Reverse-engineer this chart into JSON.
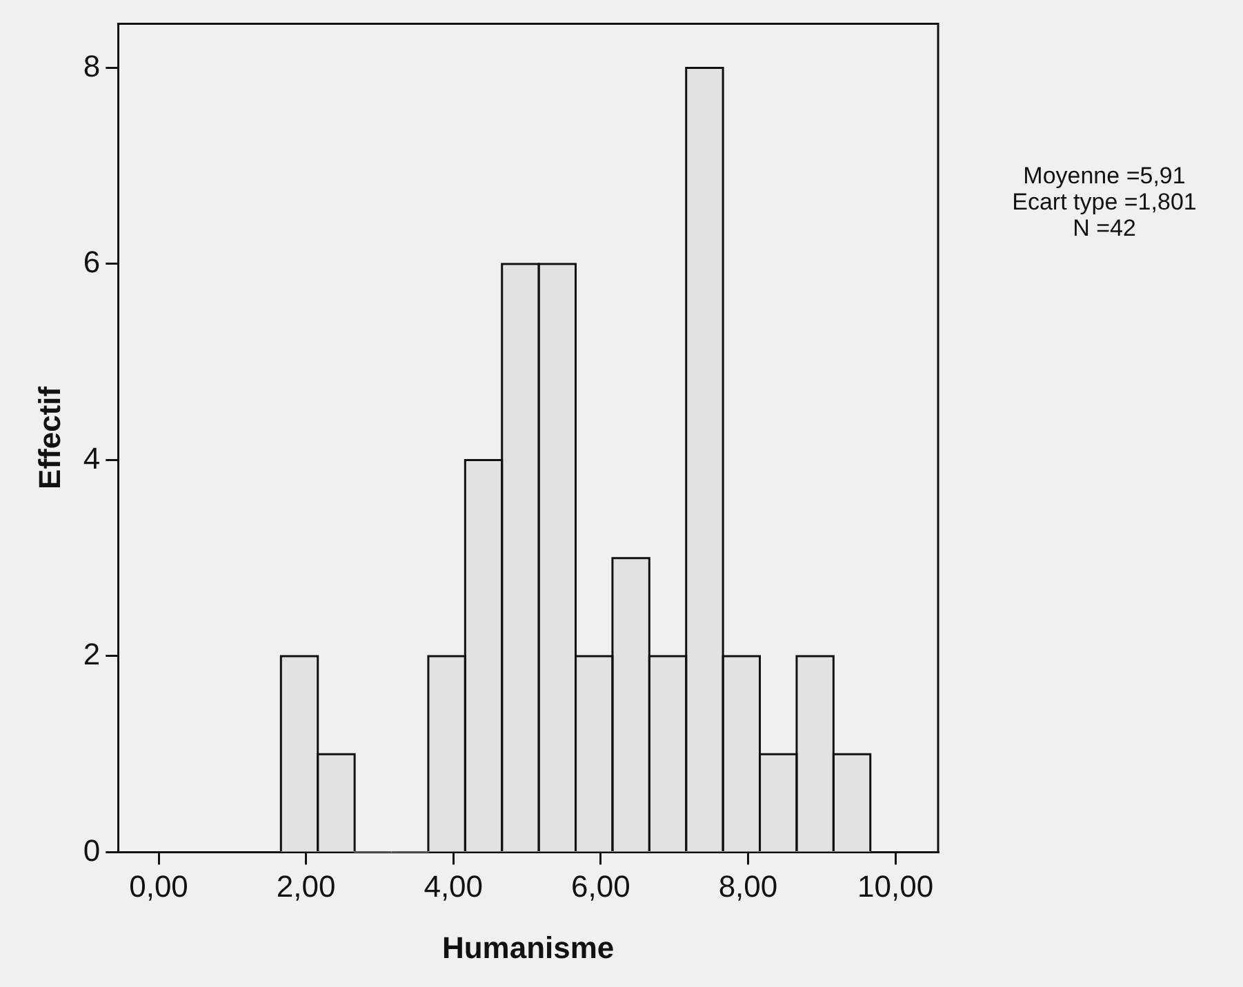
{
  "chart_data": {
    "type": "histogram",
    "xlabel": "Humanisme",
    "ylabel": "Effectif",
    "bins": [
      1.66,
      2.16,
      2.66,
      3.16,
      3.66,
      4.16,
      4.66,
      5.16,
      5.66,
      6.16,
      6.66,
      7.16,
      7.66,
      8.16,
      8.66,
      9.16,
      9.66
    ],
    "values": [
      2,
      1,
      0,
      0,
      2,
      4,
      6,
      6,
      2,
      3,
      2,
      8,
      2,
      1,
      2,
      1
    ],
    "color": "#e2e2e2",
    "xlim": [
      -0.55,
      10.58
    ],
    "xticks": [
      {
        "value": 0,
        "label": "0,00"
      },
      {
        "value": 2,
        "label": "2,00"
      },
      {
        "value": 4,
        "label": "4,00"
      },
      {
        "value": 6,
        "label": "6,00"
      },
      {
        "value": 8,
        "label": "8,00"
      },
      {
        "value": 10,
        "label": "10,00"
      }
    ],
    "ylim": [
      0,
      8.45
    ],
    "yticks": [
      0,
      2,
      4,
      6,
      8
    ],
    "grid": false,
    "legend": false,
    "annotations": [
      "Moyenne =5,91\nEcart type =1,801\nN =42"
    ]
  }
}
